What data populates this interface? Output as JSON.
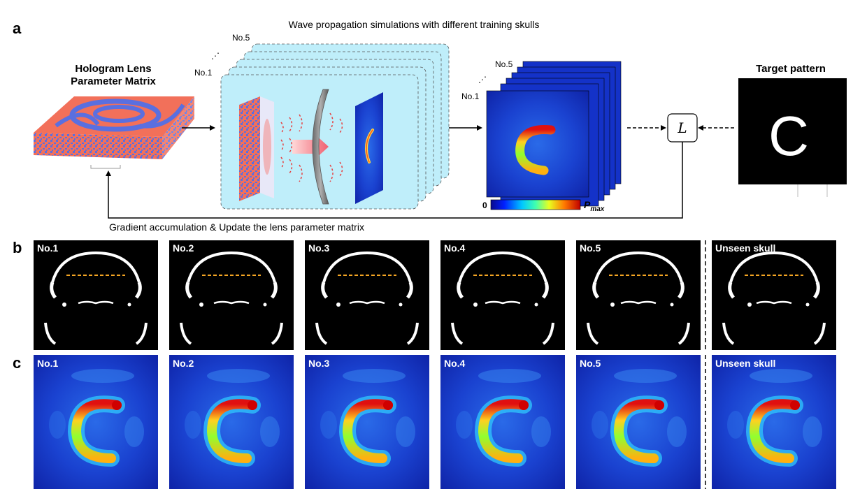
{
  "panel_a": {
    "letter": "a",
    "lens_title_line1": "Hologram Lens",
    "lens_title_line2": "Parameter Matrix",
    "simulation_caption": "Wave propagation simulations with different training skulls",
    "stack_labels": {
      "first": "No.1",
      "last": "No.5",
      "dots": "⋰"
    },
    "output_stack_labels": {
      "first": "No.1",
      "last": "No.5",
      "dots": "⋰"
    },
    "colorbar": {
      "min_label": "0",
      "max_label": "P",
      "max_subscript": "max"
    },
    "loss_symbol": "L",
    "target_title": "Target pattern",
    "target_letter": "C",
    "feedback_caption": "Gradient accumulation & Update the lens parameter matrix"
  },
  "panel_b": {
    "letter": "b",
    "skulls": [
      "No.1",
      "No.2",
      "No.3",
      "No.4",
      "No.5",
      "Unseen skull"
    ]
  },
  "panel_c": {
    "letter": "c",
    "fields": [
      "No.1",
      "No.2",
      "No.3",
      "No.4",
      "No.5",
      "Unseen skull"
    ]
  },
  "colors": {
    "sim_bg": "#bfeefa",
    "lens_red": "#f2705a",
    "lens_blue": "#5a6fe0",
    "field_bg": "#1432c8",
    "skull_dash": "#f5a623",
    "target_bg": "#000000"
  }
}
